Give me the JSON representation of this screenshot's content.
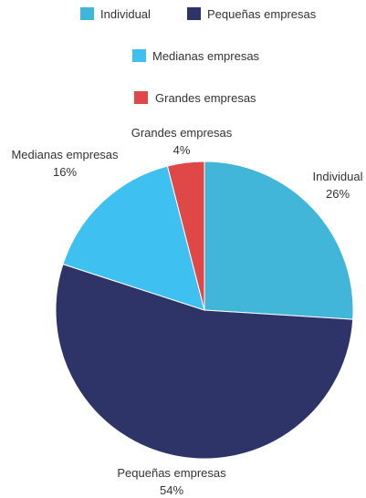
{
  "chart_data": {
    "type": "pie",
    "title": "",
    "categories": [
      "Individual",
      "Pequeñas empresas",
      "Medianas empresas",
      "Grandes empresas"
    ],
    "values": [
      26,
      54,
      16,
      4
    ],
    "value_labels": [
      "26%",
      "54%",
      "16%",
      "4%"
    ],
    "colors": [
      "#41B6D8",
      "#2E3368",
      "#3EC1F0",
      "#E04848"
    ],
    "legend": {
      "placement": "top",
      "entries": [
        "Individual",
        "Pequeñas empresas",
        "Medianas empresas",
        "Grandes empresas"
      ]
    }
  }
}
